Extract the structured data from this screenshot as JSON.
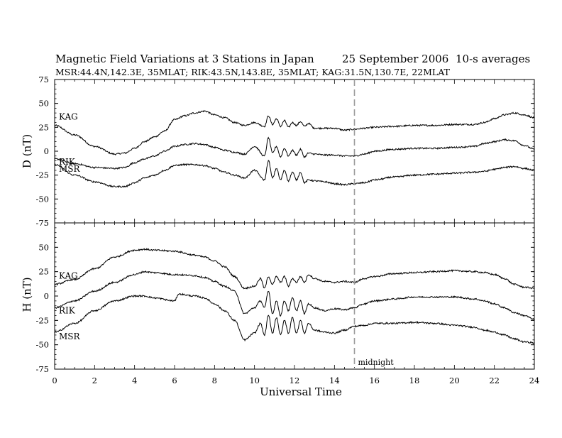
{
  "chart_data": {
    "type": "line",
    "title": "Magnetic Field Variations at 3 Stations in Japan",
    "date": "25 September 2006",
    "averaging": "10-s averages",
    "subtitle": "MSR:44.4N,142.3E, 35MLAT;  RIK:43.5N,143.8E, 35MLAT;  KAG:31.5N,130.7E, 22MLAT",
    "xlabel": "Universal Time",
    "xlim": [
      0,
      24
    ],
    "xticks": [
      0,
      2,
      4,
      6,
      8,
      10,
      12,
      14,
      16,
      18,
      20,
      22,
      24
    ],
    "marker": {
      "x": 15,
      "label": "midnight",
      "style": "dashed gray"
    },
    "panels": [
      {
        "ylabel": "D (nT)",
        "ylim": [
          -75,
          75
        ],
        "yticks": [
          75,
          50,
          25,
          0,
          -25,
          -50,
          -75
        ],
        "series": [
          {
            "name": "KAG",
            "x": [
              0,
              1,
              2,
              3,
              3.5,
              4,
              4.5,
              5,
              5.5,
              6,
              6.5,
              7,
              7.5,
              8,
              8.5,
              9,
              9.5,
              10,
              10.5,
              10.7,
              10.9,
              11.1,
              11.3,
              11.5,
              11.7,
              11.9,
              12.1,
              12.3,
              12.5,
              12.7,
              13,
              13.5,
              14,
              14.5,
              15,
              15.5,
              16,
              17,
              18,
              19,
              20,
              21,
              21.5,
              22,
              22.5,
              23,
              23.5,
              24
            ],
            "y": [
              27,
              17,
              5,
              -3,
              -2,
              3,
              10,
              15,
              21,
              33,
              37,
              40,
              42,
              38,
              35,
              30,
              27,
              30,
              26,
              37,
              28,
              34,
              26,
              32,
              25,
              30,
              27,
              31,
              26,
              29,
              24,
              24,
              24,
              22,
              23,
              24,
              25,
              26,
              27,
              27,
              28,
              28,
              30,
              34,
              38,
              40,
              38,
              35
            ]
          },
          {
            "name": "RIK",
            "x": [
              0,
              1,
              2,
              3,
              3.5,
              4,
              4.5,
              5,
              5.5,
              6,
              6.5,
              7,
              7.5,
              8,
              8.5,
              9,
              9.5,
              10,
              10.5,
              10.7,
              10.9,
              11.1,
              11.3,
              11.5,
              11.7,
              11.9,
              12.1,
              12.3,
              12.5,
              12.7,
              13,
              13.5,
              14,
              14.5,
              15,
              15.5,
              16,
              17,
              18,
              19,
              20,
              21,
              21.5,
              22,
              22.5,
              23,
              23.5,
              24
            ],
            "y": [
              -8,
              -13,
              -17,
              -18,
              -17,
              -12,
              -8,
              -5,
              0,
              5,
              7,
              8,
              7,
              4,
              1,
              -1,
              -3,
              5,
              -5,
              14,
              -2,
              5,
              -6,
              3,
              -5,
              1,
              -4,
              2,
              -6,
              -2,
              -3,
              -4,
              -4,
              -5,
              -5,
              -3,
              0,
              2,
              3,
              3,
              4,
              5,
              8,
              10,
              12,
              11,
              6,
              2
            ]
          },
          {
            "name": "MSR",
            "x": [
              0,
              1,
              2,
              3,
              3.5,
              4,
              4.5,
              5,
              5.5,
              6,
              6.5,
              7,
              7.5,
              8,
              8.5,
              9,
              9.5,
              10,
              10.5,
              10.7,
              10.9,
              11.1,
              11.3,
              11.5,
              11.7,
              11.9,
              12.1,
              12.3,
              12.5,
              12.7,
              13,
              13.5,
              14,
              14.5,
              15,
              15.5,
              16,
              17,
              18,
              19,
              20,
              21,
              21.5,
              22,
              22.5,
              23,
              23.5,
              24
            ],
            "y": [
              -14,
              -25,
              -32,
              -37,
              -37,
              -33,
              -28,
              -25,
              -20,
              -15,
              -14,
              -14,
              -15,
              -18,
              -22,
              -25,
              -28,
              -20,
              -30,
              -10,
              -28,
              -18,
              -30,
              -20,
              -31,
              -22,
              -30,
              -22,
              -33,
              -30,
              -31,
              -32,
              -34,
              -35,
              -34,
              -33,
              -30,
              -27,
              -25,
              -24,
              -23,
              -22,
              -21,
              -19,
              -17,
              -16,
              -18,
              -20
            ]
          }
        ]
      },
      {
        "ylabel": "H (nT)",
        "ylim": [
          -75,
          75
        ],
        "yticks": [
          75,
          50,
          25,
          0,
          -25,
          -50,
          -75
        ],
        "series": [
          {
            "name": "KAG",
            "x": [
              0,
              1,
              2,
              3,
              4,
              4.5,
              5,
              6,
              7,
              7.5,
              8,
              8.5,
              9,
              9.5,
              10,
              10.3,
              10.5,
              10.7,
              10.9,
              11.1,
              11.3,
              11.5,
              11.7,
              11.9,
              12.1,
              12.3,
              12.5,
              12.7,
              13,
              13.5,
              14,
              14.5,
              15,
              15.5,
              16,
              17,
              18,
              19,
              20,
              21,
              21.5,
              22,
              22.5,
              23,
              23.5,
              24
            ],
            "y": [
              12,
              17,
              28,
              40,
              47,
              48,
              47,
              46,
              42,
              40,
              36,
              30,
              20,
              8,
              10,
              18,
              8,
              20,
              12,
              20,
              14,
              20,
              10,
              18,
              14,
              20,
              14,
              22,
              18,
              15,
              14,
              15,
              14,
              18,
              20,
              23,
              24,
              25,
              26,
              25,
              24,
              22,
              18,
              12,
              9,
              8
            ]
          },
          {
            "name": "RIK",
            "x": [
              0,
              1,
              2,
              3,
              4,
              4.5,
              5,
              6,
              7,
              7.5,
              8,
              8.5,
              9,
              9.5,
              10,
              10.3,
              10.5,
              10.7,
              10.9,
              11.1,
              11.3,
              11.5,
              11.7,
              11.9,
              12.1,
              12.3,
              12.5,
              12.7,
              13,
              13.5,
              14,
              14.5,
              15,
              15.5,
              16,
              17,
              18,
              19,
              20,
              21,
              21.5,
              22,
              22.5,
              23,
              23.5,
              24
            ],
            "y": [
              -12,
              -5,
              5,
              14,
              22,
              25,
              24,
              22,
              21,
              19,
              15,
              10,
              5,
              -18,
              -12,
              -5,
              -12,
              5,
              -18,
              -5,
              -20,
              -5,
              -15,
              -2,
              -15,
              -5,
              -18,
              -8,
              -12,
              -15,
              -13,
              -14,
              -12,
              -8,
              -5,
              -3,
              -1,
              -1,
              -1,
              -3,
              -5,
              -8,
              -12,
              -17,
              -20,
              -24
            ]
          },
          {
            "name": "MSR",
            "x": [
              0,
              1,
              2,
              3,
              4,
              4.5,
              5,
              6,
              6.2,
              7,
              7.5,
              8,
              8.5,
              9,
              9.5,
              10,
              10.3,
              10.5,
              10.7,
              10.9,
              11.1,
              11.3,
              11.5,
              11.7,
              11.9,
              12.1,
              12.3,
              12.5,
              12.7,
              13,
              13.5,
              14,
              14.5,
              15,
              15.5,
              16,
              17,
              18,
              19,
              20,
              21,
              21.5,
              22,
              22.5,
              23,
              23.5,
              24
            ],
            "y": [
              -37,
              -28,
              -15,
              -5,
              0,
              0,
              -2,
              -5,
              2,
              0,
              -2,
              -8,
              -15,
              -25,
              -45,
              -38,
              -28,
              -40,
              -20,
              -38,
              -22,
              -40,
              -25,
              -38,
              -22,
              -38,
              -25,
              -38,
              -28,
              -35,
              -37,
              -38,
              -35,
              -31,
              -30,
              -28,
              -28,
              -27,
              -28,
              -30,
              -32,
              -35,
              -37,
              -40,
              -44,
              -47,
              -48
            ]
          }
        ]
      }
    ]
  }
}
